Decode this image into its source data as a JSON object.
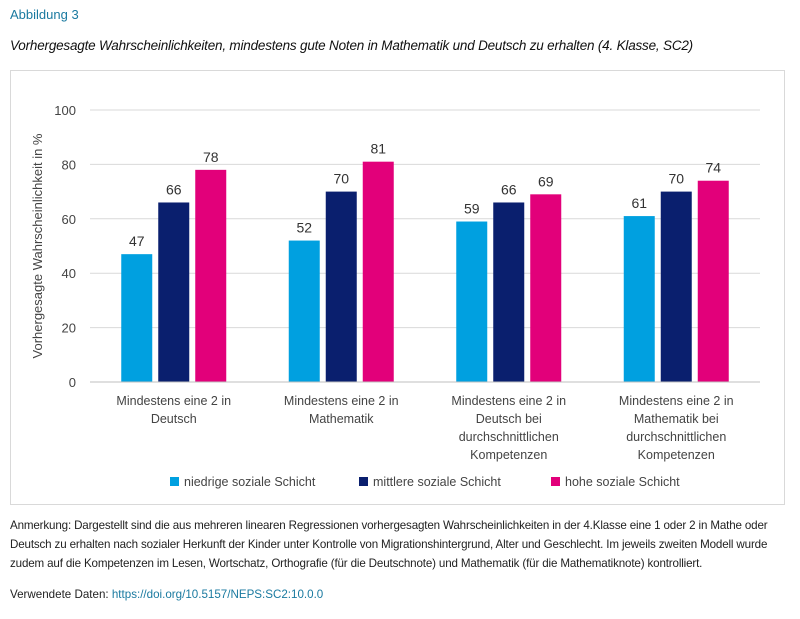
{
  "figure_label": "Abbildung 3",
  "chart_data": {
    "type": "bar",
    "title": "Vorhergesagte Wahrscheinlichkeiten, mindestens gute Noten in Mathematik und Deutsch zu erhalten (4. Klasse, SC2)",
    "ylabel": "Vorhergesagte Wahrscheinlichkeit in %",
    "xlabel": "",
    "ylim": [
      0,
      100
    ],
    "yticks": [
      0,
      20,
      40,
      60,
      80,
      100
    ],
    "grid": true,
    "legend_position": "bottom",
    "categories": [
      [
        "Mindestens eine 2 in",
        "Deutsch"
      ],
      [
        "Mindestens eine 2 in",
        "Mathematik"
      ],
      [
        "Mindestens eine 2 in",
        "Deutsch bei",
        "durchschnittlichen",
        "Kompetenzen"
      ],
      [
        "Mindestens eine 2 in",
        "Mathematik bei",
        "durchschnittlichen",
        "Kompetenzen"
      ]
    ],
    "series": [
      {
        "name": "niedrige soziale Schicht",
        "color": "#00a0e0",
        "values": [
          47,
          52,
          59,
          61
        ]
      },
      {
        "name": "mittlere soziale Schicht",
        "color": "#0a1f6e",
        "values": [
          66,
          70,
          66,
          70
        ]
      },
      {
        "name": "hohe soziale Schicht",
        "color": "#e2007a",
        "values": [
          78,
          81,
          69,
          74
        ]
      }
    ]
  },
  "note": "Anmerkung: Dargestellt sind die aus mehreren linearen Regressionen vorhergesagten Wahrscheinlichkeiten in der 4.Klasse eine 1 oder 2 in Mathe oder Deutsch zu erhalten nach sozialer Herkunft der Kinder unter Kontrolle von Migrationshintergrund, Alter und Geschlecht. Im jeweils zweiten Modell wurde zudem auf die Kompetenzen im Lesen, Wortschatz, Orthografie (für die Deutschnote) und Mathematik (für die Mathematiknote) kontrolliert.",
  "data_source": {
    "label": "Verwendete Daten:",
    "link": "https://doi.org/10.5157/NEPS:SC2:10.0.0"
  }
}
